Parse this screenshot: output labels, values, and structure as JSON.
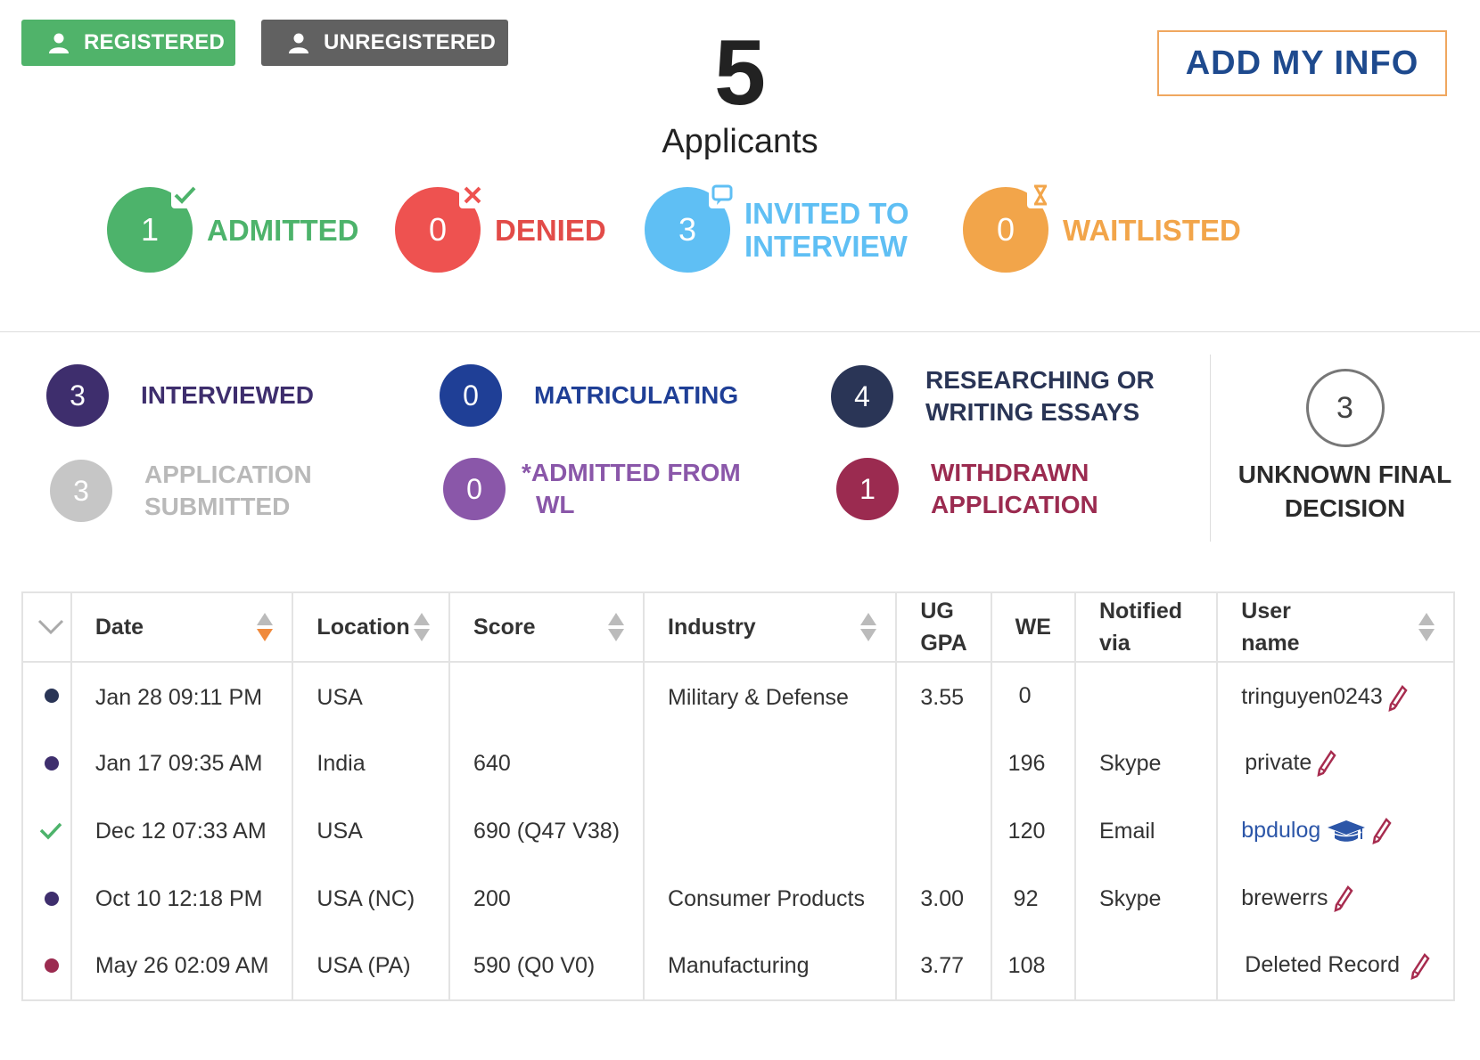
{
  "filters": {
    "registered": "REGISTERED",
    "unregistered": "UNREGISTERED"
  },
  "headline": {
    "count": "5",
    "label": "Applicants"
  },
  "add_info": "ADD MY INFO",
  "status_main": [
    {
      "count": "1",
      "label": "ADMITTED",
      "color": "#4db36b",
      "icon": "check-icon"
    },
    {
      "count": "0",
      "label": "DENIED",
      "color": "#ee5250",
      "icon": "x-icon"
    },
    {
      "count": "3",
      "label_line1": "INVITED TO",
      "label_line2": "INTERVIEW",
      "color": "#5fbff4",
      "icon": "chat-bubble-icon"
    },
    {
      "count": "0",
      "label": "WAITLISTED",
      "color": "#f2a54a",
      "icon": "hourglass-icon"
    }
  ],
  "status_sub": [
    {
      "count": "3",
      "label": "INTERVIEWED",
      "color": "#3e2e6d"
    },
    {
      "count": "0",
      "label": "MATRICULATING",
      "color": "#1f3f96"
    },
    {
      "count": "4",
      "label_line1": "RESEARCHING OR",
      "label_line2": "WRITING ESSAYS",
      "color": "#2a3556"
    },
    {
      "count": "3",
      "label_line1": "APPLICATION",
      "label_line2": "SUBMITTED",
      "color": "#c6c6c6"
    },
    {
      "count": "0",
      "label_line1": "*ADMITTED FROM",
      "label_line2": "WL",
      "color": "#8a57a9"
    },
    {
      "count": "1",
      "label_line1": "WITHDRAWN",
      "label_line2": "APPLICATION",
      "color": "#9b2b50"
    }
  ],
  "unknown": {
    "count": "3",
    "label_line1": "UNKNOWN FINAL",
    "label_line2": "DECISION"
  },
  "table": {
    "headers": {
      "date": "Date",
      "location": "Location",
      "score": "Score",
      "industry": "Industry",
      "gpa_line1": "UG",
      "gpa_line2": "GPA",
      "we": "WE",
      "notified_line1": "Notified",
      "notified_line2": "via",
      "user_line1": "User",
      "user_line2": "name"
    },
    "rows": [
      {
        "marker": "dot",
        "marker_color": "#2a3556",
        "date": "Jan 28 09:11 PM",
        "location": "USA",
        "score": "",
        "industry": "Military & Defense",
        "gpa": "3.55",
        "we": "0",
        "notified": "",
        "user": "tringuyen0243"
      },
      {
        "marker": "dot",
        "marker_color": "#3e2e6d",
        "date": "Jan 17 09:35 AM",
        "location": "India",
        "score": "640",
        "industry": "",
        "gpa": "",
        "we": "196",
        "notified": "Skype",
        "user": "private"
      },
      {
        "marker": "check",
        "marker_color": "#4db36b",
        "date": "Dec 12 07:33 AM",
        "location": "USA",
        "score": "690 (Q47 V38)",
        "industry": "",
        "gpa": "",
        "we": "120",
        "notified": "Email",
        "user": "bpdulog"
      },
      {
        "marker": "dot",
        "marker_color": "#3e2e6d",
        "date": "Oct 10 12:18 PM",
        "location": "USA (NC)",
        "score": "200",
        "industry": "Consumer Products",
        "gpa": "3.00",
        "we": "92",
        "notified": "Skype",
        "user": "brewerrs"
      },
      {
        "marker": "dot",
        "marker_color": "#9b2b50",
        "date": "May 26 02:09 AM",
        "location": "USA (PA)",
        "score": "590 (Q0 V0)",
        "industry": "Manufacturing",
        "gpa": "3.77",
        "we": "108",
        "notified": "",
        "user": "Deleted Record"
      }
    ]
  }
}
